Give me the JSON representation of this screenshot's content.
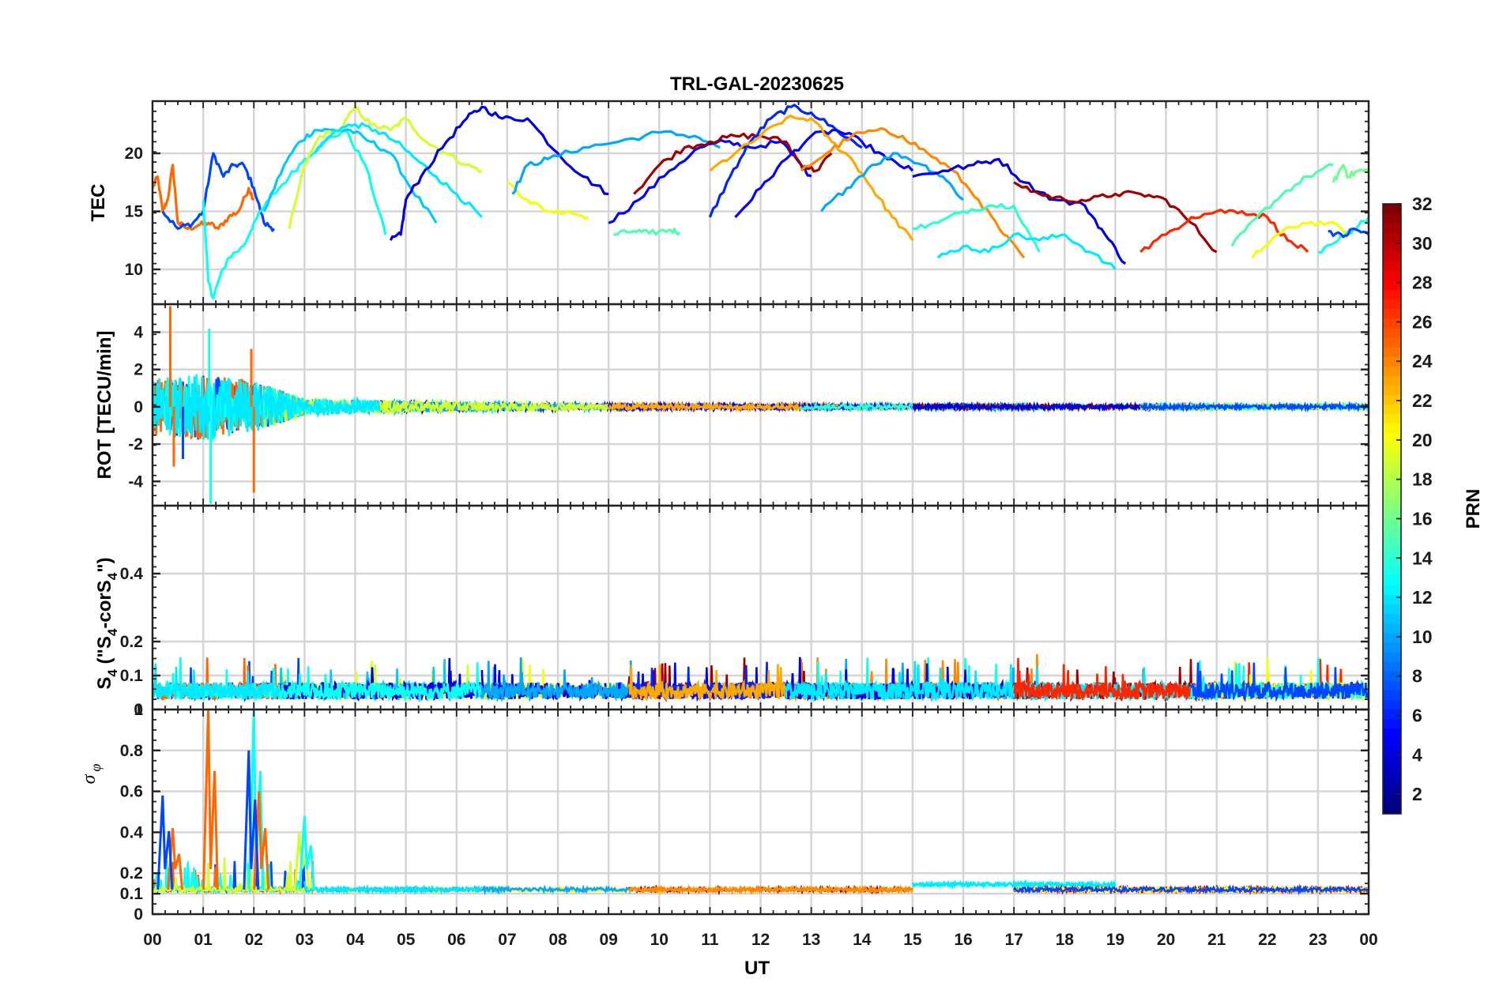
{
  "chart_data": {
    "type": "line",
    "title": "TRL-GAL-20230625",
    "xlabel": "UT",
    "x_ticks": [
      "00",
      "01",
      "02",
      "03",
      "04",
      "05",
      "06",
      "07",
      "08",
      "09",
      "10",
      "11",
      "12",
      "13",
      "14",
      "15",
      "16",
      "17",
      "18",
      "19",
      "20",
      "21",
      "22",
      "23",
      "00"
    ],
    "xlim": [
      0,
      24
    ],
    "grid": true,
    "colorbar": {
      "label": "PRN",
      "range": [
        1,
        32
      ],
      "ticks": [
        "2",
        "4",
        "6",
        "8",
        "10",
        "12",
        "14",
        "16",
        "18",
        "20",
        "22",
        "24",
        "26",
        "28",
        "30",
        "32"
      ],
      "colormap": "jet"
    },
    "panels": [
      {
        "id": "tec",
        "ylabel": "TEC",
        "ylim": [
          7,
          24.5
        ],
        "y_ticks": [
          "10",
          "15",
          "20"
        ],
        "series": [
          {
            "prn": 25,
            "x": [
              0,
              0.1,
              0.2,
              0.3,
              0.4,
              0.5,
              0.7,
              0.9,
              1.1,
              1.3,
              1.5,
              1.7,
              1.9,
              2.0
            ],
            "y": [
              17,
              18,
              15,
              16,
              19,
              14,
              13.5,
              13.8,
              14,
              13.5,
              14.5,
              15,
              17,
              16
            ]
          },
          {
            "prn": 7,
            "x": [
              0.2,
              0.5,
              0.8,
              1.0,
              1.2,
              1.4,
              1.6,
              1.8,
              2.0,
              2.2,
              2.4
            ],
            "y": [
              15,
              13.5,
              14,
              15,
              20,
              18,
              19,
              19,
              17,
              14,
              13.5
            ]
          },
          {
            "prn": 13,
            "x": [
              1.0,
              1.1,
              1.2,
              1.3,
              1.5,
              1.8,
              2.0,
              2.3,
              2.7,
              3.0,
              3.4,
              3.8,
              4.2,
              4.6
            ],
            "y": [
              16,
              9,
              7.5,
              9,
              11,
              12,
              14,
              16,
              18,
              19.5,
              21,
              22,
              19,
              13
            ]
          },
          {
            "prn": 11,
            "x": [
              2.2,
              2.6,
              2.9,
              3.2,
              3.5,
              3.9,
              4.3,
              4.7,
              5.1,
              5.6
            ],
            "y": [
              15,
              19,
              21,
              22,
              22,
              22,
              21,
              20,
              17,
              14
            ]
          },
          {
            "prn": 19,
            "x": [
              2.7,
              3.0,
              3.3,
              3.7,
              4.0,
              4.3,
              4.7,
              5.0,
              5.4,
              5.8,
              6.2,
              6.5
            ],
            "y": [
              13.5,
              19,
              21.5,
              22,
              24,
              22.5,
              22,
              23,
              21,
              20,
              19,
              18.5
            ]
          },
          {
            "prn": 12,
            "x": [
              3.2,
              3.6,
              4.0,
              4.4,
              4.8,
              5.2,
              5.6,
              6.0,
              6.5
            ],
            "y": [
              20,
              22,
              22.5,
              22,
              21,
              19.5,
              18,
              16.5,
              14.5
            ]
          },
          {
            "prn": 4,
            "x": [
              4.7,
              4.9,
              5.0,
              5.3,
              5.8,
              6.2,
              6.5,
              6.9,
              7.4,
              8.0,
              8.5,
              9.0
            ],
            "y": [
              12.5,
              13,
              16,
              18,
              21,
              23,
              24,
              23,
              23,
              20,
              18,
              16.5
            ]
          },
          {
            "prn": 20,
            "x": [
              7.0,
              7.4,
              7.8,
              8.2,
              8.6
            ],
            "y": [
              17.5,
              16,
              15,
              15,
              14.5
            ]
          },
          {
            "prn": 10,
            "x": [
              7.1,
              7.4,
              7.8,
              8.5,
              9.2,
              10.0,
              10.7,
              11.2
            ],
            "y": [
              16.5,
              19,
              19.5,
              20.5,
              21,
              21.8,
              21.5,
              20.5
            ]
          },
          {
            "prn": 15,
            "x": [
              9.1,
              9.5,
              9.8,
              10.2,
              10.4
            ],
            "y": [
              13,
              13.3,
              13.1,
              13.4,
              13.2
            ]
          },
          {
            "prn": 5,
            "x": [
              9.0,
              9.6,
              10.2,
              10.8,
              11.3,
              11.8,
              12.4,
              12.8,
              13.0
            ],
            "y": [
              14,
              16,
              18.5,
              20.5,
              21,
              20.5,
              21,
              19,
              18
            ]
          },
          {
            "prn": 31,
            "x": [
              9.5,
              10.0,
              10.5,
              11.0,
              11.5,
              12.0,
              12.5,
              12.8,
              13.1,
              13.4
            ],
            "y": [
              16.5,
              19,
              20.5,
              21,
              21.5,
              21.5,
              21,
              19,
              18.5,
              20
            ]
          },
          {
            "prn": 6,
            "x": [
              11.0,
              11.4,
              11.8,
              12.2,
              12.6,
              13.0,
              13.5,
              14.0
            ],
            "y": [
              14.5,
              18,
              21,
              23,
              24,
              23.5,
              22,
              20.5
            ]
          },
          {
            "prn": 5,
            "x": [
              11.5,
              12.0,
              12.5,
              13.0,
              13.5,
              14.0,
              14.5,
              15.0
            ],
            "y": [
              14.5,
              17,
              19.5,
              21.5,
              22,
              21,
              19.5,
              18.5
            ]
          },
          {
            "prn": 23,
            "x": [
              11.0,
              11.5,
              12.0,
              12.5,
              13.0,
              13.4,
              13.8,
              14.2,
              14.6,
              15.0
            ],
            "y": [
              18.5,
              20,
              21.5,
              23,
              23,
              21,
              19.5,
              17,
              14.5,
              12.5
            ]
          },
          {
            "prn": 24,
            "x": [
              12.8,
              13.3,
              13.8,
              14.3,
              14.8,
              15.3,
              15.8,
              16.3,
              16.8,
              17.2
            ],
            "y": [
              18.5,
              20,
              21.5,
              22,
              21.5,
              20,
              18.5,
              16,
              13,
              11
            ]
          },
          {
            "prn": 10,
            "x": [
              13.2,
              13.7,
              14.2,
              14.7,
              15.2,
              15.6,
              16.0
            ],
            "y": [
              15,
              17,
              19,
              20,
              19,
              18,
              16
            ]
          },
          {
            "prn": 4,
            "x": [
              15.0,
              15.6,
              16.2,
              16.7,
              17.2,
              17.8,
              18.4,
              18.8,
              19.2
            ],
            "y": [
              18,
              18.5,
              19,
              19.5,
              17.5,
              16,
              15.5,
              13,
              10.5
            ]
          },
          {
            "prn": 14,
            "x": [
              15.0,
              15.5,
              16.0,
              16.5,
              17.0,
              17.5
            ],
            "y": [
              13.5,
              14,
              15,
              15.5,
              15.5,
              11.5
            ]
          },
          {
            "prn": 12,
            "x": [
              15.5,
              16.0,
              16.5,
              17.0,
              17.5,
              18.0,
              18.5,
              19.0
            ],
            "y": [
              11,
              12,
              11.5,
              13,
              12.5,
              13,
              11.5,
              10
            ]
          },
          {
            "prn": 31,
            "x": [
              17.0,
              17.5,
              18.0,
              18.5,
              19.0,
              19.5,
              20.0,
              20.5,
              21.0
            ],
            "y": [
              17.5,
              16.5,
              16,
              16,
              16.5,
              16.5,
              16,
              14,
              11.5
            ]
          },
          {
            "prn": 27,
            "x": [
              19.5,
              20.0,
              20.5,
              21.0,
              21.5,
              22.0,
              22.4,
              22.8
            ],
            "y": [
              11.5,
              13,
              14.5,
              15,
              15,
              14.5,
              12.5,
              11.5
            ]
          },
          {
            "prn": 15,
            "x": [
              21.3,
              21.8,
              22.3,
              22.8,
              23.3
            ],
            "y": [
              12,
              14.5,
              16.5,
              18,
              19
            ]
          },
          {
            "prn": 20,
            "x": [
              21.7,
              22.2,
              22.7,
              23.2,
              23.7
            ],
            "y": [
              11,
              13,
              14,
              14,
              13
            ]
          },
          {
            "prn": 16,
            "x": [
              23.3,
              23.5,
              23.6,
              23.8,
              24.0
            ],
            "y": [
              17.5,
              19,
              18,
              18.5,
              18.5
            ]
          },
          {
            "prn": 13,
            "x": [
              23.0,
              23.4,
              23.7,
              24.0
            ],
            "y": [
              11.5,
              12.5,
              13.5,
              14.5
            ]
          },
          {
            "prn": 7,
            "x": [
              23.2,
              23.5,
              23.7,
              24.0
            ],
            "y": [
              13.3,
              12.8,
              13.5,
              13
            ]
          }
        ]
      },
      {
        "id": "rot",
        "ylabel": "ROT [TECU/min]",
        "ylim": [
          -5.3,
          5.5
        ],
        "y_ticks": [
          "-4",
          "-2",
          "0",
          "2",
          "4"
        ],
        "envelope": [
          [
            0,
            1.5
          ],
          [
            1,
            1.8
          ],
          [
            2,
            1.4
          ],
          [
            3,
            0.45
          ],
          [
            5,
            0.3
          ],
          [
            7,
            0.2
          ],
          [
            9,
            0.15
          ],
          [
            12,
            0.12
          ],
          [
            16,
            0.12
          ],
          [
            20,
            0.1
          ],
          [
            24,
            0.12
          ]
        ],
        "spikes": [
          {
            "prn": 25,
            "x": 0.35,
            "y": 5.4
          },
          {
            "prn": 25,
            "x": 0.42,
            "y": -3.2
          },
          {
            "prn": 13,
            "x": 1.15,
            "y": -5.2
          },
          {
            "prn": 13,
            "x": 1.12,
            "y": 4.2
          },
          {
            "prn": 25,
            "x": 2.0,
            "y": -4.6
          },
          {
            "prn": 25,
            "x": 1.95,
            "y": 3.1
          },
          {
            "prn": 7,
            "x": 0.6,
            "y": -2.8
          }
        ]
      },
      {
        "id": "s4",
        "ylabel": "S4 (\"S4-corS4\")",
        "ylabel_parts": {
          "s": "S",
          "sub": "4",
          "mid": " (\"S",
          "sub2": "4",
          "rest": "-corS",
          "sub3": "4",
          "end": "\")"
        },
        "ylim": [
          0,
          0.6
        ],
        "y_ticks": [
          "0",
          "0.1",
          "0.2",
          "0.4"
        ],
        "baseline": 0.05,
        "noise": 0.05
      },
      {
        "id": "sigma_phi",
        "ylabel": "σφ",
        "ylabel_parts": {
          "s": "σ",
          "sub": "φ"
        },
        "ylim": [
          0,
          1
        ],
        "y_ticks": [
          "0",
          "0.1",
          "0.2",
          "0.4",
          "0.6",
          "0.8",
          "1"
        ],
        "baseline": 0.12,
        "spikes": [
          {
            "prn": 25,
            "x": 0.4,
            "y": 0.42
          },
          {
            "prn": 7,
            "x": 0.2,
            "y": 0.58
          },
          {
            "prn": 25,
            "x": 1.1,
            "y": 1.0
          },
          {
            "prn": 13,
            "x": 2.0,
            "y": 1.0
          },
          {
            "prn": 25,
            "x": 2.1,
            "y": 0.6
          },
          {
            "prn": 7,
            "x": 1.9,
            "y": 0.8
          },
          {
            "prn": 19,
            "x": 2.9,
            "y": 0.4
          },
          {
            "prn": 13,
            "x": 3.0,
            "y": 0.48
          }
        ]
      }
    ]
  }
}
